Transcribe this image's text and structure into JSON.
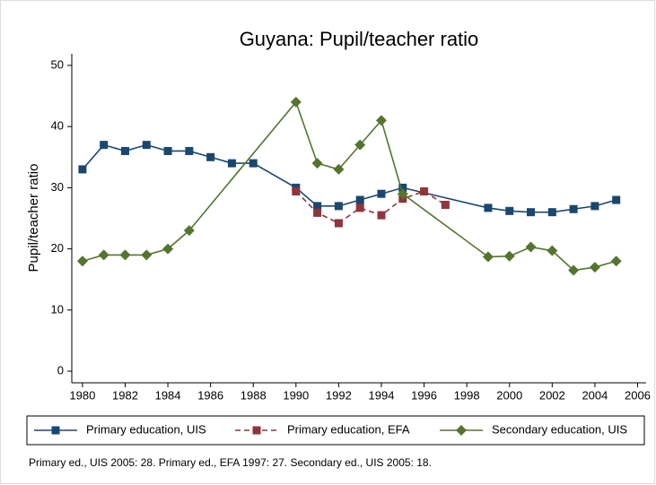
{
  "chart_data": {
    "type": "line",
    "title": "Guyana: Pupil/teacher ratio",
    "y_label": "Pupil/teacher ratio",
    "note": "Primary ed., UIS 2005: 28. Primary ed., EFA 1997: 27. Secondary ed., UIS 2005: 18.",
    "xlim": [
      1979.5,
      2006.4
    ],
    "xticks": [
      1980,
      1982,
      1984,
      1986,
      1988,
      1990,
      1992,
      1994,
      1996,
      1998,
      2000,
      2002,
      2004,
      2006
    ],
    "ylim": [
      -1.9,
      51.9
    ],
    "yticks": [
      0,
      10,
      20,
      30,
      40,
      50
    ],
    "legend": "bottom",
    "series": [
      {
        "name": "Primary education, UIS",
        "color": "#1a476f",
        "marker": "square",
        "dash": false,
        "x": [
          1980,
          1981,
          1982,
          1983,
          1984,
          1985,
          1986,
          1987,
          1988,
          1990,
          1991,
          1992,
          1993,
          1994,
          1995,
          1999,
          2000,
          2001,
          2002,
          2003,
          2004,
          2005
        ],
        "values": [
          33,
          37,
          36,
          37,
          36,
          36,
          35,
          34,
          34,
          30,
          27,
          27,
          28,
          29,
          30,
          26.7,
          26.2,
          26,
          26,
          26.5,
          27,
          28
        ]
      },
      {
        "name": "Primary education, EFA",
        "color": "#90353b",
        "marker": "square",
        "dash": true,
        "x": [
          1990,
          1991,
          1992,
          1993,
          1994,
          1995,
          1996,
          1997
        ],
        "values": [
          29.4,
          25.9,
          24.2,
          26.7,
          25.5,
          28.2,
          29.4,
          27.2
        ]
      },
      {
        "name": "Secondary education, UIS",
        "color": "#55752f",
        "marker": "diamond",
        "dash": false,
        "x": [
          1980,
          1981,
          1982,
          1983,
          1984,
          1985,
          1990,
          1991,
          1992,
          1993,
          1994,
          1995,
          1999,
          2000,
          2001,
          2002,
          2003,
          2004,
          2005
        ],
        "values": [
          18,
          19,
          19,
          19,
          20,
          23,
          44,
          34,
          33,
          37,
          41,
          29,
          18.7,
          18.8,
          20.3,
          19.7,
          16.5,
          17,
          18
        ]
      }
    ]
  }
}
